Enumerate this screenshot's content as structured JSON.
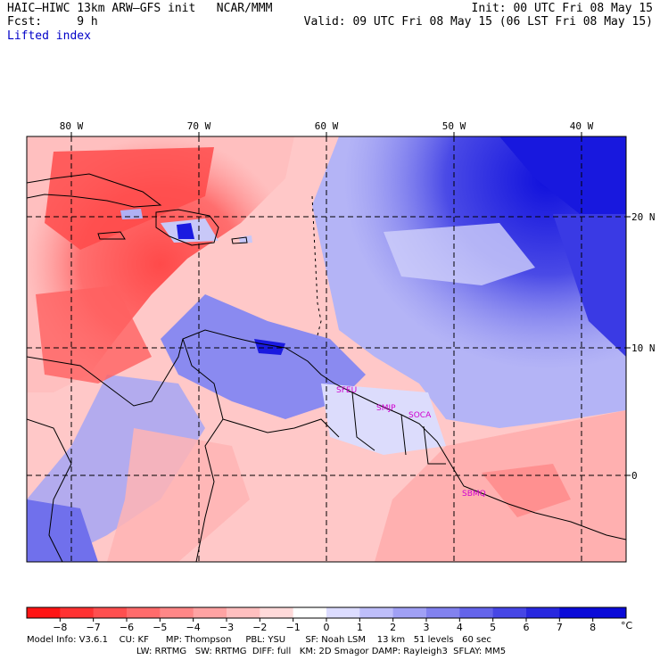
{
  "header": {
    "title": "HAIC–HIWC 13km ARW–GFS init   NCAR/MMM",
    "init": "Init: 00 UTC Fri 08 May 15",
    "fcst": "Fcst:     9 h",
    "valid": "Valid: 09 UTC Fri 08 May 15 (06 LST Fri 08 May 15)",
    "field": "Lifted index"
  },
  "map": {
    "lon_labels": [
      "80 W",
      "70 W",
      "60 W",
      "50 W",
      "40 W"
    ],
    "lat_labels": [
      "20 N",
      "10 N",
      "0"
    ],
    "stations": [
      "SFEU",
      "SMJP",
      "SOCA",
      "SBMQ"
    ],
    "colors": {
      "station": "#d000d0",
      "coast": "#000000",
      "grid": "#000000"
    }
  },
  "colorbar": {
    "ticks": [
      "−8",
      "−7",
      "−6",
      "−5",
      "−4",
      "−3",
      "−2",
      "−1",
      "0",
      "1",
      "2",
      "3",
      "4",
      "5",
      "6",
      "7",
      "8"
    ],
    "unit": "°C",
    "colors": [
      "#ff1414",
      "#ff3232",
      "#ff4f4f",
      "#ff6b6b",
      "#ff8787",
      "#ffa3a3",
      "#ffbfbf",
      "#ffdada",
      "#ffffff",
      "#dcdcff",
      "#bebefa",
      "#a0a0f5",
      "#8282ef",
      "#6464ea",
      "#4646e5",
      "#2828df",
      "#0a0ad8"
    ]
  },
  "footer": {
    "line1": "Model Info: V3.6.1    CU: KF      MP: Thompson     PBL: YSU       SF: Noah LSM    13 km   51 levels   60 sec",
    "line2": "LW: RRTMG   SW: RRTMG  DIFF: full   KM: 2D Smagor DAMP: Rayleigh3  SFLAY: MM5"
  }
}
